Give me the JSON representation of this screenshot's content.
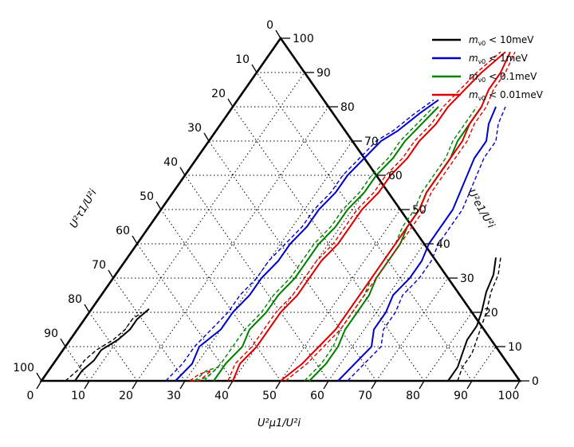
{
  "chart_data": {
    "type": "line",
    "subtype": "ternary",
    "axes": {
      "bottom": {
        "label": "U²μ1/U²i",
        "ticks": [
          "0",
          "10",
          "20",
          "30",
          "40",
          "50",
          "60",
          "70",
          "80",
          "90",
          "100"
        ]
      },
      "left": {
        "label": "U²τ1/U²i",
        "ticks": [
          "0",
          "10",
          "20",
          "30",
          "40",
          "50",
          "60",
          "70",
          "80",
          "90",
          "100"
        ]
      },
      "right": {
        "label": "U²e1/U²i",
        "ticks": [
          "0",
          "10",
          "20",
          "30",
          "40",
          "50",
          "60",
          "70",
          "80",
          "90",
          "100"
        ]
      }
    },
    "grid": true,
    "legend_position": "top-right",
    "series": [
      {
        "name": "m_ν0 < 10meV",
        "color": "#000000",
        "left_solid": [
          [
            7,
            0
          ],
          [
            7,
            3
          ],
          [
            8,
            6
          ],
          [
            8,
            9
          ],
          [
            10,
            12
          ],
          [
            11,
            15
          ],
          [
            11,
            18
          ],
          [
            12,
            21
          ]
        ],
        "left_dash": [
          [
            5,
            0
          ],
          [
            6,
            3
          ],
          [
            6,
            6
          ],
          [
            7,
            9
          ],
          [
            9,
            12
          ],
          [
            10,
            15
          ],
          [
            10,
            18
          ],
          [
            11,
            20
          ]
        ],
        "right_solid": [
          [
            85,
            0
          ],
          [
            85,
            4
          ],
          [
            84,
            8
          ],
          [
            83,
            12
          ],
          [
            83,
            16
          ],
          [
            82,
            20
          ],
          [
            80,
            26
          ],
          [
            79,
            31
          ],
          [
            77,
            36
          ]
        ],
        "right_dash": [
          [
            87,
            0
          ],
          [
            86,
            4
          ],
          [
            86,
            8
          ],
          [
            85,
            12
          ],
          [
            84,
            16
          ],
          [
            83,
            20
          ],
          [
            81,
            26
          ],
          [
            80,
            31
          ],
          [
            78,
            36
          ]
        ]
      },
      {
        "name": "m_ν0 < 1meV",
        "color": "#0000cc",
        "left_solid": [
          [
            28,
            0
          ],
          [
            29,
            5
          ],
          [
            28,
            10
          ],
          [
            30,
            15
          ],
          [
            30,
            20
          ],
          [
            31,
            25
          ],
          [
            31,
            30
          ],
          [
            32,
            35
          ],
          [
            32,
            40
          ],
          [
            33,
            45
          ],
          [
            33,
            50
          ],
          [
            34,
            55
          ],
          [
            34,
            60
          ],
          [
            35,
            65
          ],
          [
            36,
            70
          ],
          [
            38,
            73
          ],
          [
            40,
            78
          ],
          [
            42,
            82
          ]
        ],
        "left_dash": [
          [
            26,
            0
          ],
          [
            27,
            5
          ],
          [
            27,
            10
          ],
          [
            28,
            15
          ],
          [
            29,
            20
          ],
          [
            29,
            25
          ],
          [
            30,
            30
          ],
          [
            30,
            35
          ],
          [
            31,
            40
          ],
          [
            32,
            45
          ],
          [
            32,
            50
          ],
          [
            33,
            55
          ],
          [
            33,
            60
          ],
          [
            34,
            65
          ],
          [
            35,
            70
          ],
          [
            37,
            73
          ],
          [
            39,
            78
          ],
          [
            41,
            82
          ]
        ],
        "right_solid": [
          [
            62,
            0
          ],
          [
            63,
            5
          ],
          [
            64,
            10
          ],
          [
            62,
            15
          ],
          [
            62,
            20
          ],
          [
            61,
            25
          ],
          [
            62,
            30
          ],
          [
            62,
            35
          ],
          [
            61,
            40
          ],
          [
            61,
            45
          ],
          [
            61,
            50
          ],
          [
            60,
            55
          ],
          [
            59,
            60
          ],
          [
            58,
            65
          ],
          [
            58,
            70
          ],
          [
            56,
            75
          ],
          [
            55,
            80
          ]
        ],
        "right_dash": [
          [
            64,
            0
          ],
          [
            65,
            5
          ],
          [
            66,
            10
          ],
          [
            64,
            15
          ],
          [
            64,
            20
          ],
          [
            63,
            25
          ],
          [
            64,
            30
          ],
          [
            64,
            35
          ],
          [
            63,
            40
          ],
          [
            63,
            45
          ],
          [
            63,
            50
          ],
          [
            62,
            55
          ],
          [
            61,
            60
          ],
          [
            60,
            65
          ],
          [
            60,
            70
          ],
          [
            58,
            75
          ],
          [
            57,
            80
          ]
        ]
      },
      {
        "name": "m_ν0 < 0.1meV",
        "color": "#008000",
        "left_solid": [
          [
            36,
            0
          ],
          [
            36,
            5
          ],
          [
            37,
            10
          ],
          [
            36,
            15
          ],
          [
            37,
            20
          ],
          [
            37,
            25
          ],
          [
            38,
            30
          ],
          [
            38,
            35
          ],
          [
            38,
            40
          ],
          [
            39,
            45
          ],
          [
            39,
            50
          ],
          [
            40,
            55
          ],
          [
            40,
            60
          ],
          [
            41,
            65
          ],
          [
            41,
            70
          ],
          [
            42,
            75
          ],
          [
            43,
            80
          ]
        ],
        "left_dash": [
          [
            34,
            0
          ],
          [
            35,
            5
          ],
          [
            35,
            10
          ],
          [
            35,
            15
          ],
          [
            36,
            20
          ],
          [
            36,
            25
          ],
          [
            37,
            30
          ],
          [
            37,
            35
          ],
          [
            37,
            40
          ],
          [
            38,
            45
          ],
          [
            38,
            50
          ],
          [
            39,
            55
          ],
          [
            39,
            60
          ],
          [
            40,
            65
          ],
          [
            40,
            70
          ],
          [
            41,
            75
          ],
          [
            42,
            80
          ]
        ],
        "left_loop": [
          [
            32,
            0
          ],
          [
            33,
            3
          ],
          [
            35,
            4
          ],
          [
            34,
            1
          ],
          [
            32,
            0
          ]
        ],
        "right_solid": [
          [
            56,
            0
          ],
          [
            57,
            5
          ],
          [
            57,
            10
          ],
          [
            56,
            15
          ],
          [
            56,
            20
          ],
          [
            56,
            25
          ],
          [
            55,
            30
          ],
          [
            55,
            35
          ],
          [
            55,
            40
          ],
          [
            54,
            45
          ],
          [
            54,
            50
          ],
          [
            53,
            55
          ],
          [
            53,
            60
          ],
          [
            53,
            65
          ],
          [
            52,
            70
          ],
          [
            52,
            75
          ],
          [
            52,
            80
          ]
        ],
        "right_dash": [
          [
            55,
            0
          ],
          [
            56,
            5
          ],
          [
            56,
            10
          ],
          [
            55,
            15
          ],
          [
            55,
            20
          ],
          [
            55,
            25
          ],
          [
            54,
            30
          ],
          [
            54,
            35
          ],
          [
            54,
            40
          ],
          [
            53,
            45
          ],
          [
            53,
            50
          ],
          [
            52,
            55
          ],
          [
            52,
            60
          ],
          [
            52,
            65
          ],
          [
            51,
            70
          ],
          [
            51,
            75
          ],
          [
            51,
            80
          ]
        ]
      },
      {
        "name": "m_ν0 < 0.01meV",
        "color": "#dd0000",
        "left_solid": [
          [
            40,
            0
          ],
          [
            39,
            5
          ],
          [
            40,
            10
          ],
          [
            40,
            15
          ],
          [
            40,
            20
          ],
          [
            41,
            25
          ],
          [
            41,
            30
          ],
          [
            41,
            35
          ],
          [
            42,
            40
          ],
          [
            42,
            45
          ],
          [
            42,
            50
          ],
          [
            43,
            55
          ],
          [
            43,
            60
          ],
          [
            44,
            65
          ],
          [
            44,
            70
          ],
          [
            45,
            75
          ],
          [
            45,
            80
          ],
          [
            46,
            85
          ],
          [
            47,
            90
          ],
          [
            49,
            96
          ]
        ],
        "left_dash": [
          [
            39,
            0
          ],
          [
            38,
            5
          ],
          [
            39,
            10
          ],
          [
            39,
            15
          ],
          [
            39,
            20
          ],
          [
            40,
            25
          ],
          [
            40,
            30
          ],
          [
            40,
            35
          ],
          [
            41,
            40
          ],
          [
            41,
            45
          ],
          [
            41,
            50
          ],
          [
            42,
            55
          ],
          [
            42,
            60
          ],
          [
            43,
            65
          ],
          [
            43,
            70
          ],
          [
            44,
            75
          ],
          [
            44,
            80
          ],
          [
            45,
            85
          ],
          [
            46,
            90
          ],
          [
            48,
            96
          ]
        ],
        "left_loop": [
          [
            31,
            0
          ],
          [
            32,
            2
          ],
          [
            34,
            3
          ],
          [
            33,
            0
          ],
          [
            31,
            0
          ]
        ],
        "right_solid": [
          [
            50,
            0
          ],
          [
            52,
            5
          ],
          [
            53,
            10
          ],
          [
            54,
            15
          ],
          [
            54,
            20
          ],
          [
            54,
            25
          ],
          [
            54,
            30
          ],
          [
            54,
            35
          ],
          [
            54,
            40
          ],
          [
            54,
            45
          ],
          [
            54,
            50
          ],
          [
            53,
            55
          ],
          [
            53,
            60
          ],
          [
            53,
            65
          ],
          [
            53,
            70
          ],
          [
            52,
            75
          ],
          [
            52,
            80
          ],
          [
            51,
            85
          ],
          [
            51,
            90
          ],
          [
            50,
            96
          ]
        ],
        "right_dash": [
          [
            51,
            0
          ],
          [
            53,
            5
          ],
          [
            54,
            10
          ],
          [
            55,
            15
          ],
          [
            55,
            20
          ],
          [
            55,
            25
          ],
          [
            55,
            30
          ],
          [
            55,
            35
          ],
          [
            55,
            40
          ],
          [
            55,
            45
          ],
          [
            55,
            50
          ],
          [
            54,
            55
          ],
          [
            54,
            60
          ],
          [
            54,
            65
          ],
          [
            54,
            70
          ],
          [
            53,
            75
          ],
          [
            53,
            80
          ],
          [
            52,
            85
          ],
          [
            52,
            90
          ],
          [
            51,
            96
          ]
        ]
      }
    ]
  },
  "legend": [
    {
      "prefix": "m",
      "sub": "ν0",
      "suffix": " < 10meV",
      "color": "#000000"
    },
    {
      "prefix": "m",
      "sub": "ν0",
      "suffix": " < 1meV",
      "color": "#0000cc"
    },
    {
      "prefix": "m",
      "sub": "ν0",
      "suffix": " < 0.1meV",
      "color": "#008000"
    },
    {
      "prefix": "m",
      "sub": "ν0",
      "suffix": " < 0.01meV",
      "color": "#dd0000"
    }
  ]
}
